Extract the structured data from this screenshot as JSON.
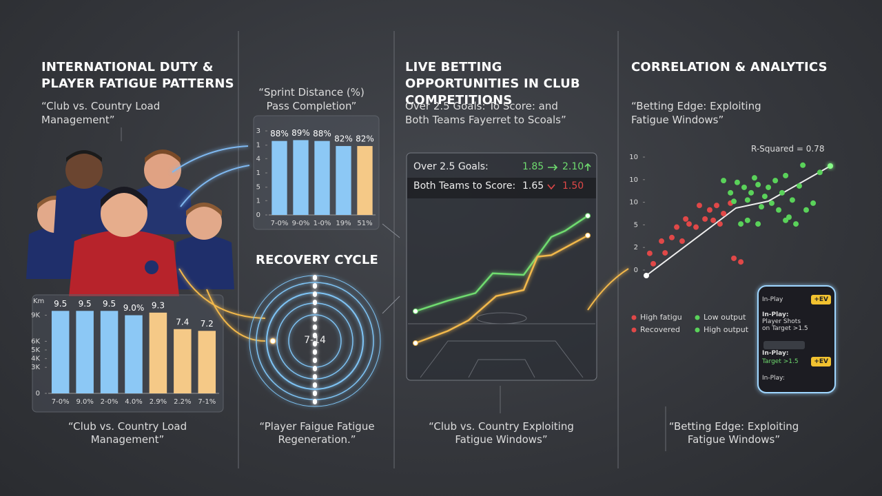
{
  "sections": [
    {
      "title": "INTERNATIONAL DUTY & PLAYER FATIGUE PATTERNS",
      "subtitle": "“Club vs. Country Load Management”",
      "caption": "“Club vs. Country Load Management”"
    },
    {
      "title": "RECOVERY CYCLE",
      "center": "7-14",
      "caption": "“Player Faigue Fatigue Regeneration.”"
    },
    {
      "title": "LIVE BETTING OPPORTUNITIES IN CLUB COMPETITIONS",
      "subtitle": "Over 2.5 Goals: To Score: and Both Teams Fayerret to Scoals”",
      "caption": "“Club vs. Country Exploiting Fatigue Windows”"
    },
    {
      "title": "CORRELATION & ANALYTICS",
      "subtitle": "“Betting Edge: Exploiting Fatigue Windows”",
      "caption": "“Betting Edge: Exploiting Fatigue Windows”"
    }
  ],
  "odds": [
    {
      "market": "Over 2.5 Goals:",
      "from": "1.85",
      "to": "2.10"
    },
    {
      "market": "Both Teams to Score:",
      "from": "1.65",
      "to": "1.50"
    }
  ],
  "phone": {
    "header": "In-Play",
    "badge": "+EV",
    "items": [
      {
        "label": "In-Play:",
        "text": "Player Shots on Target >1.5"
      },
      {
        "label": "In-Play:",
        "text": "Target >1.5",
        "badge": "+EV"
      }
    ],
    "footer": "In-Play:"
  },
  "chart_data": [
    {
      "type": "bar",
      "ylabel": "Km",
      "categories": [
        "7-0%",
        "9.0%",
        "2-0%",
        "4.0%",
        "2.9%",
        "2.2%",
        "7-1%"
      ],
      "values": [
        9.5,
        9.5,
        9.5,
        9.0,
        9.3,
        7.4,
        7.2
      ],
      "value_labels": [
        "9.5",
        "9.5",
        "9.5",
        "9.0%",
        "9.3",
        "7.4",
        "7.2"
      ],
      "colors": [
        "#8cc8f5",
        "#8cc8f5",
        "#8cc8f5",
        "#8cc8f5",
        "#f5c987",
        "#f5c987",
        "#f5c987"
      ],
      "ylim": [
        0,
        10
      ],
      "yticks": [
        0,
        {
          "value": 3,
          "label": "3K"
        },
        {
          "value": 4,
          "label": "4K"
        },
        {
          "value": 5,
          "label": "5K"
        },
        {
          "value": 6,
          "label": "6K"
        },
        {
          "value": 9,
          "label": "9K"
        }
      ]
    },
    {
      "type": "bar",
      "title": "“Sprint Distance (%) Pass Completion”",
      "categories": [
        "7-0%",
        "9-0%",
        "1-0%",
        "19%",
        "51%"
      ],
      "values": [
        88,
        89,
        88,
        82,
        82
      ],
      "value_labels": [
        "88%",
        "89%",
        "88%",
        "82%",
        "82%"
      ],
      "colors": [
        "#8cc8f5",
        "#8cc8f5",
        "#8cc8f5",
        "#8cc8f5",
        "#f5c987"
      ],
      "ylim": [
        0,
        100
      ],
      "yticks": [
        0,
        {
          "value": 17,
          "label": "1"
        },
        {
          "value": 33,
          "label": "5"
        },
        {
          "value": 50,
          "label": "1"
        },
        {
          "value": 67,
          "label": "4"
        },
        {
          "value": 83,
          "label": "1"
        },
        {
          "value": 100,
          "label": "3"
        }
      ]
    },
    {
      "type": "line",
      "xlim": [
        0,
        100
      ],
      "ylim": [
        0,
        100
      ],
      "series": [
        {
          "color": "#6fdc6f",
          "x": [
            0,
            18.8,
            34.8,
            44.8,
            62.8,
            78.8,
            86.8,
            100
          ],
          "values": [
            31,
            38,
            43,
            56,
            55,
            80,
            84,
            94
          ]
        },
        {
          "color": "#f2b84b",
          "x": [
            0,
            18.8,
            30.8,
            46.8,
            62.8,
            70.8,
            78.8,
            100
          ],
          "values": [
            10,
            18,
            25,
            41,
            45,
            67,
            68,
            81
          ]
        }
      ]
    },
    {
      "type": "scatter",
      "annotation": "R-Squared = 0.78",
      "xlim": [
        0,
        100
      ],
      "ylim": [
        0,
        25
      ],
      "yticks": [
        0,
        {
          "value": 5,
          "label": "2"
        },
        {
          "value": 10,
          "label": "5"
        },
        {
          "value": 15,
          "label": "10"
        },
        {
          "value": 20,
          "label": "10"
        },
        {
          "value": 25,
          "label": "10"
        }
      ],
      "series": [
        {
          "color": "#e04848",
          "x": [
            1.8,
            8.1,
            10,
            3.7,
            13.6,
            16.2,
            19.1,
            21,
            22.8,
            26.5,
            28.3,
            31.3,
            33.8,
            37.5,
            39.3,
            41.2,
            44.9,
            46.7,
            50.4,
            35.7
          ],
          "values": [
            3.7,
            6.4,
            3.8,
            1.4,
            7.2,
            9.5,
            6.4,
            11.3,
            10.2,
            9.5,
            14.3,
            11.3,
            13.3,
            14.3,
            10.2,
            12.5,
            14.8,
            2.6,
            1.8,
            11
          ]
        },
        {
          "color": "#5ad25a",
          "x": [
            41.2,
            44.9,
            46.7,
            48.5,
            52.2,
            54,
            55.9,
            57.7,
            59.6,
            61.4,
            63.2,
            65.1,
            66.9,
            68.8,
            70.6,
            72.4,
            74.3,
            76.1,
            77.9,
            79.8,
            81.6,
            83.5,
            85.3,
            89,
            92.6,
            54,
            50.4,
            59.6,
            74.3
          ],
          "values": [
            19.8,
            17.1,
            15.2,
            19.4,
            18.3,
            15.5,
            17.1,
            20.4,
            18.9,
            14,
            16.3,
            18.3,
            14.8,
            19.8,
            13.3,
            17.1,
            20.9,
            11.7,
            15.5,
            10.2,
            18.6,
            23.2,
            13.3,
            14.8,
            21.6,
            11,
            10.2,
            10.2,
            11
          ]
        }
      ],
      "legend": [
        {
          "label": "High fatigu",
          "color": "#e04848"
        },
        {
          "label": "Low output",
          "color": "#5ad25a"
        },
        {
          "label": "Recovered",
          "color": "#e04848"
        },
        {
          "label": "High output",
          "color": "#5ad25a"
        }
      ]
    }
  ]
}
